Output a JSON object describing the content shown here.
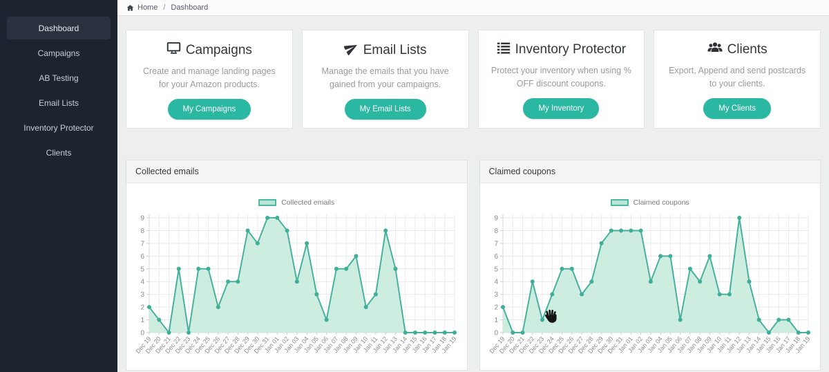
{
  "theme": {
    "accent": "#2bb8a2",
    "sidebar_bg": "#1c2430",
    "sidebar_active_bg": "#2a3240",
    "page_bg": "#edefef"
  },
  "breadcrumb": {
    "home_icon": "home-icon",
    "home": "Home",
    "separator": "/",
    "current": "Dashboard"
  },
  "sidebar": {
    "items": [
      {
        "label": "Dashboard",
        "active": true
      },
      {
        "label": "Campaigns",
        "active": false
      },
      {
        "label": "AB Testing",
        "active": false
      },
      {
        "label": "Email Lists",
        "active": false
      },
      {
        "label": "Inventory Protector",
        "active": false
      },
      {
        "label": "Clients",
        "active": false
      }
    ]
  },
  "cards": [
    {
      "icon": "desktop-icon",
      "title": "Campaigns",
      "description": "Create and manage landing pages for your Amazon products.",
      "button": "My Campaigns"
    },
    {
      "icon": "paper-plane-icon",
      "title": "Email Lists",
      "description": "Manage the emails that you have gained from your campaigns.",
      "button": "My Email Lists"
    },
    {
      "icon": "list-icon",
      "title": "Inventory Protector",
      "description": "Protect your inventory when using % OFF discount coupons.",
      "button": "My Inventory"
    },
    {
      "icon": "users-icon",
      "title": "Clients",
      "description": "Export, Append and send postcards to your clients.",
      "button": "My Clients"
    }
  ],
  "chart_data": [
    {
      "type": "area",
      "title": "Collected emails",
      "legend": "Collected emails",
      "categories": [
        "Dec 19",
        "Dec 20",
        "Dec 21",
        "Dec 22",
        "Dec 23",
        "Dec 24",
        "Dec 25",
        "Dec 26",
        "Dec 27",
        "Dec 28",
        "Dec 29",
        "Dec 30",
        "Dec 31",
        "Jan 01",
        "Jan 02",
        "Jan 03",
        "Jan 04",
        "Jan 05",
        "Jan 06",
        "Jan 07",
        "Jan 08",
        "Jan 09",
        "Jan 10",
        "Jan 11",
        "Jan 12",
        "Jan 13",
        "Jan 14",
        "Jan 15",
        "Jan 16",
        "Jan 17",
        "Jan 18",
        "Jan 19"
      ],
      "values": [
        2,
        1,
        0,
        5,
        0,
        5,
        5,
        2,
        4,
        4,
        8,
        7,
        9,
        9,
        8,
        4,
        7,
        3,
        1,
        5,
        5,
        6,
        2,
        3,
        8,
        5,
        0,
        0,
        0,
        0,
        0,
        0
      ],
      "xlabel": "",
      "ylabel": "",
      "ylim": [
        0,
        9
      ],
      "grid": true,
      "legend_position": "top-center",
      "line_color": "#46b29c",
      "fill_color": "#c3e9db",
      "point_color": "#3fae96"
    },
    {
      "type": "area",
      "title": "Claimed coupons",
      "legend": "Claimed coupons",
      "categories": [
        "Dec 19",
        "Dec 20",
        "Dec 21",
        "Dec 22",
        "Dec 23",
        "Dec 24",
        "Dec 25",
        "Dec 26",
        "Dec 27",
        "Dec 28",
        "Dec 29",
        "Dec 30",
        "Dec 31",
        "Jan 01",
        "Jan 02",
        "Jan 03",
        "Jan 04",
        "Jan 05",
        "Jan 06",
        "Jan 07",
        "Jan 08",
        "Jan 09",
        "Jan 10",
        "Jan 11",
        "Jan 12",
        "Jan 13",
        "Jan 14",
        "Jan 15",
        "Jan 16",
        "Jan 17",
        "Jan 18",
        "Jan 19"
      ],
      "values": [
        2,
        0,
        0,
        4,
        1,
        3,
        5,
        5,
        3,
        4,
        7,
        8,
        8,
        8,
        8,
        4,
        6,
        6,
        1,
        5,
        4,
        6,
        3,
        3,
        9,
        4,
        1,
        0,
        1,
        1,
        0,
        0
      ],
      "xlabel": "",
      "ylabel": "",
      "ylim": [
        0,
        9
      ],
      "grid": true,
      "legend_position": "top-center",
      "line_color": "#46b29c",
      "fill_color": "#c3e9db",
      "point_color": "#3fae96"
    }
  ],
  "cursor": {
    "type": "hand-cursor"
  }
}
